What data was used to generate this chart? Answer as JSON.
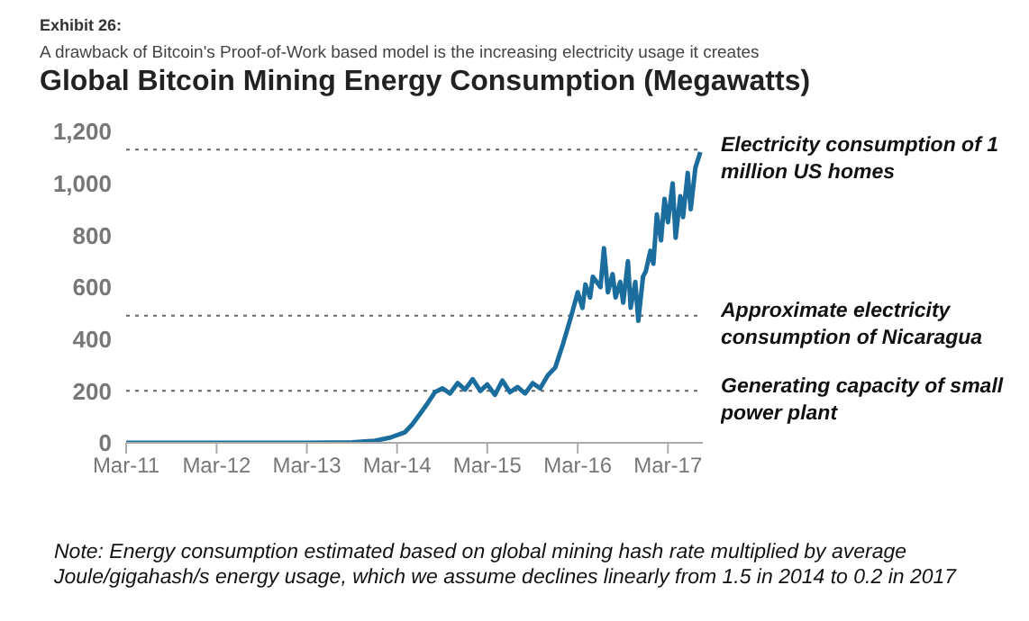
{
  "chart_data": {
    "type": "line",
    "title": "Global Bitcoin Mining Energy Consumption (Megawatts)",
    "subtitle": "A drawback of Bitcoin's Proof-of-Work based model is the increasing electricity usage it creates",
    "annotations": [
      "Exhibit 26:",
      "Note: Energy consumption estimated based on global mining hash rate multiplied by average Joule/gigahash/s energy usage, which we assume declines linearly from 1.5 in 2014 to 0.2 in 2017"
    ],
    "x": [
      "2011-03-01",
      "2012-03-01",
      "2013-03-01",
      "2013-09-01",
      "2013-12-01",
      "2014-02-01",
      "2014-04-01",
      "2014-05-01",
      "2014-06-01",
      "2014-07-01",
      "2014-08-01",
      "2014-09-01",
      "2014-10-01",
      "2014-11-01",
      "2014-12-01",
      "2015-01-01",
      "2015-02-01",
      "2015-03-01",
      "2015-04-01",
      "2015-05-01",
      "2015-06-01",
      "2015-07-01",
      "2015-08-01",
      "2015-09-01",
      "2015-10-01",
      "2015-11-01",
      "2015-12-01",
      "2016-01-01",
      "2016-02-01",
      "2016-03-01",
      "2016-03-20",
      "2016-04-01",
      "2016-04-20",
      "2016-05-01",
      "2016-06-01",
      "2016-06-15",
      "2016-07-01",
      "2016-07-20",
      "2016-08-01",
      "2016-08-20",
      "2016-09-01",
      "2016-09-20",
      "2016-10-01",
      "2016-10-20",
      "2016-11-01",
      "2016-11-20",
      "2016-12-01",
      "2016-12-20",
      "2017-01-01",
      "2017-01-15",
      "2017-02-01",
      "2017-02-15",
      "2017-03-01",
      "2017-03-20",
      "2017-04-01",
      "2017-04-20",
      "2017-05-01",
      "2017-05-20",
      "2017-06-01",
      "2017-06-20",
      "2017-07-10"
    ],
    "series": [
      {
        "color": "#1b6d9e",
        "values": [
          0,
          0,
          0,
          2,
          8,
          20,
          40,
          70,
          110,
          150,
          195,
          210,
          190,
          230,
          205,
          245,
          200,
          225,
          185,
          240,
          195,
          215,
          190,
          230,
          210,
          260,
          290,
          380,
          480,
          580,
          520,
          610,
          560,
          640,
          600,
          750,
          580,
          650,
          560,
          620,
          540,
          700,
          520,
          620,
          470,
          640,
          660,
          740,
          690,
          880,
          780,
          940,
          850,
          1000,
          790,
          950,
          870,
          1040,
          900,
          1060,
          1120
        ]
      }
    ],
    "xlim": [
      "2011-03-01",
      "2017-07-20"
    ],
    "xticks": [
      {
        "value": "2011-03-01",
        "label": "Mar-11"
      },
      {
        "value": "2012-03-01",
        "label": "Mar-12"
      },
      {
        "value": "2013-03-01",
        "label": "Mar-13"
      },
      {
        "value": "2014-03-01",
        "label": "Mar-14"
      },
      {
        "value": "2015-03-01",
        "label": "Mar-15"
      },
      {
        "value": "2016-03-01",
        "label": "Mar-16"
      },
      {
        "value": "2017-03-01",
        "label": "Mar-17"
      }
    ],
    "ylim": [
      0,
      1200
    ],
    "yticks": [
      0,
      200,
      400,
      600,
      800,
      {
        "value": 1000,
        "label": "1,000"
      },
      {
        "value": 1200,
        "label": "1,200"
      }
    ],
    "ref_lines": [
      {
        "axis": "y",
        "value": 1130,
        "label": "Electricity consumption of 1 million US homes",
        "line_style": "dotted",
        "color": "#666666"
      },
      {
        "axis": "y",
        "value": 490,
        "label": "Approximate electricity consumption of Nicaragua",
        "line_style": "dotted",
        "color": "#666666"
      },
      {
        "axis": "y",
        "value": 200,
        "label": "Generating capacity of small power plant",
        "line_style": "dotted",
        "color": "#666666"
      }
    ],
    "grid": false,
    "legend": false,
    "marker": "none",
    "line_style": "solid"
  }
}
